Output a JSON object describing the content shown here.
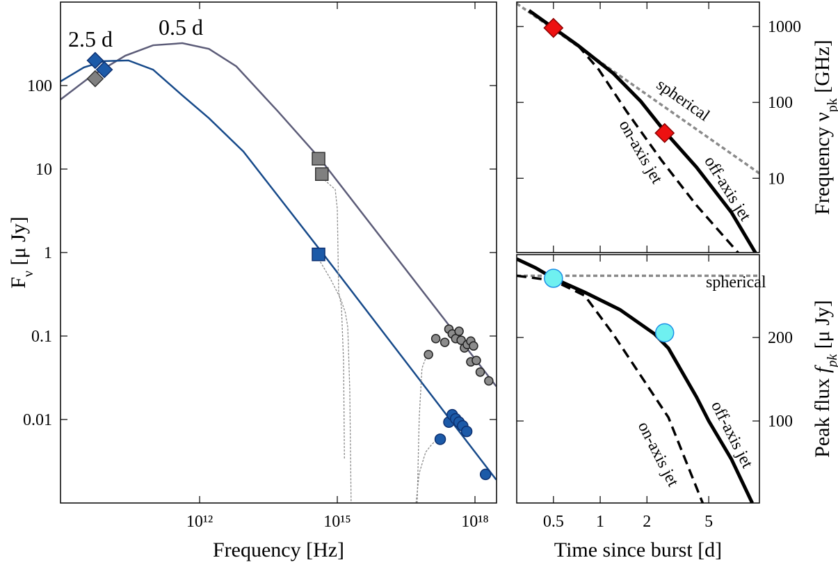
{
  "chart_data": [
    {
      "type": "line",
      "xlog": true,
      "ylog": true,
      "xlim": [
        930000000,
        2950000000000000000
      ],
      "ylim": [
        0.001,
        1000
      ],
      "xticks": [
        {
          "value": 1000000000000,
          "label": "10¹²"
        },
        {
          "value": 1000000000000000,
          "label": "10¹⁵"
        },
        {
          "value": 1000000000000000000,
          "label": "10¹⁸"
        }
      ],
      "yticks": [
        100,
        10,
        1,
        0.1,
        0.01
      ],
      "xlabel": [
        {
          "t": "Frequency [Hz]"
        }
      ],
      "ylabel": [
        {
          "t": "F"
        },
        {
          "t": "ν",
          "style": "sub"
        },
        {
          "t": "  [μ Jy]"
        }
      ],
      "annotations": [
        {
          "text": "2.5 d",
          "color": "#174a8a"
        },
        {
          "text": "0.5 d",
          "color": "#8a8a8a"
        }
      ],
      "series": [
        {
          "style": "solid",
          "color": "#5c5c78",
          "x": [
            930000000,
            4200000000,
            24000000000,
            97000000000,
            420000000000,
            1600000000000,
            6300000000000,
            51000000000000,
            420000000000000,
            2900000000000000000
          ],
          "values": [
            68,
            128,
            228,
            304,
            322,
            275,
            170,
            49,
            13.3,
            0.025
          ]
        },
        {
          "style": "solid",
          "color": "#174a8a",
          "x": [
            930000000,
            3000000000,
            8300000000,
            28000000000,
            97000000000,
            390000000000,
            1600000000000,
            9000000000000,
            500000000000000,
            2900000000000000000
          ],
          "values": [
            112,
            165,
            196,
            200,
            155,
            79,
            40.6,
            16.2,
            0.95,
            0.0019
          ]
        },
        {
          "style": "thin-dashed",
          "color": "#8a8a8a",
          "x": [
            460000000000000,
            900000000000000,
            1000000000000000,
            1070000000000000,
            1230000000000000,
            1370000000000000,
            1430000000000000
          ],
          "values": [
            7.9,
            5.7,
            3.35,
            0.335,
            0.228,
            0.049,
            0.0034
          ]
        },
        {
          "style": "thin-dashed",
          "color": "#8a8a8a",
          "x": [
            390000000000000,
            700000000000000,
            1190000000000000,
            1500000000000000,
            1690000000000000,
            1870000000000000,
            2000000000000000
          ],
          "values": [
            0.84,
            0.49,
            0.277,
            0.19,
            0.128,
            0.0228,
            0.001
          ]
        },
        {
          "style": "thin-dashed",
          "color": "#8a8a8a",
          "x": [
            55000000000000000,
            61000000000000000,
            70000000000000000,
            84000000000000000
          ],
          "values": [
            0.001,
            0.0106,
            0.041,
            0.054
          ]
        },
        {
          "style": "thin-dashed",
          "color": "#8a8a8a",
          "x": [
            52000000000000000,
            61000000000000000,
            84000000000000000,
            110000000000000000,
            157000000000000000
          ],
          "values": [
            0.001,
            0.00228,
            0.00406,
            0.0049,
            0.006
          ]
        },
        {
          "marker": "circle",
          "color": "#8c8c8c",
          "edge": "#222",
          "x": [
            97000000000000000,
            140000000000000000,
            220000000000000000,
            270000000000000000,
            320000000000000000,
            380000000000000000,
            450000000000000000,
            500000000000000000,
            590000000000000000,
            680000000000000000,
            810000000000000000,
            930000000000000000,
            810000000000000000,
            1070000000000000000,
            1300000000000000000,
            2000000000000000000
          ],
          "values": [
            0.06,
            0.093,
            0.084,
            0.121,
            0.106,
            0.093,
            0.114,
            0.089,
            0.072,
            0.079,
            0.087,
            0.076,
            0.049,
            0.051,
            0.037,
            0.029
          ]
        },
        {
          "marker": "circle-blue",
          "color": "#1c5aa8",
          "edge": "#0d3070",
          "x": [
            175000000000000000,
            270000000000000000,
            320000000000000000,
            380000000000000000,
            450000000000000000,
            540000000000000000,
            660000000000000000,
            1700000000000000000
          ],
          "values": [
            0.0058,
            0.0093,
            0.0114,
            0.0102,
            0.0093,
            0.0084,
            0.0072,
            0.0022
          ]
        },
        {
          "marker": "square",
          "color": "#808080",
          "edge": "#333",
          "x": [
            390000000000000,
            460000000000000
          ],
          "values": [
            13.3,
            8.7
          ]
        },
        {
          "marker": "square",
          "color": "#1c5aa8",
          "edge": "#0d3070",
          "x": [
            390000000000000
          ],
          "values": [
            0.95
          ]
        },
        {
          "marker": "diamond",
          "color": "#808080",
          "edge": "#333",
          "x": [
            5300000000
          ],
          "values": [
            121
          ]
        },
        {
          "marker": "diamond",
          "color": "#1c5aa8",
          "edge": "#0d3070",
          "x": [
            5300000000,
            8400000000
          ],
          "values": [
            200,
            155
          ]
        }
      ]
    },
    {
      "type": "line",
      "xlog": true,
      "ylog": true,
      "xlim": [
        0.29,
        10.6
      ],
      "ylim": [
        1.05,
        2100
      ],
      "yticks": [
        1000,
        100,
        10
      ],
      "ylabel": [
        {
          "t": "Frequency ν"
        },
        {
          "t": "pk",
          "style": "sub"
        },
        {
          "t": " [GHz]"
        }
      ],
      "annotations": [
        {
          "text": "spherical",
          "color": "#999"
        },
        {
          "text": "on-axis jet",
          "color": "#000"
        },
        {
          "text": "off-axis jet",
          "color": "#000"
        }
      ],
      "series": [
        {
          "style": "dotted",
          "color": "#8a8a8a",
          "x": [
            0.29,
            10.6
          ],
          "values": [
            2010,
            11.6
          ]
        },
        {
          "style": "dashed",
          "color": "#000",
          "x": [
            0.718,
            0.98,
            1.48,
            2.48,
            4.17,
            7.75
          ],
          "values": [
            565,
            270,
            76,
            17.3,
            4.4,
            1.04
          ]
        },
        {
          "style": "thick",
          "color": "#000",
          "x": [
            0.348,
            0.5,
            0.718,
            1.21,
            1.82,
            2.64,
            4.17,
            7.0,
            10.0
          ],
          "values": [
            1625,
            959,
            565,
            243,
            104,
            40,
            14,
            3.55,
            1.04
          ]
        },
        {
          "marker": "big-diamond",
          "color": "#ee1111",
          "edge": "#8b0000",
          "x": [
            0.5,
            2.6
          ],
          "values": [
            959,
            39.5
          ]
        }
      ]
    },
    {
      "type": "line",
      "xlog": true,
      "ylog": true,
      "xlim": [
        0.29,
        10.6
      ],
      "ylim": [
        50.6,
        398
      ],
      "xticks": [
        0.5,
        1,
        2,
        5
      ],
      "yticks": [
        200,
        100
      ],
      "xlabel": [
        {
          "t": "Time since burst [d]"
        }
      ],
      "ylabel": [
        {
          "t": "Peak flux  "
        },
        {
          "t": "f",
          "style": "italic"
        },
        {
          "t": "pk",
          "style": "italic-sub"
        },
        {
          "t": " [μ Jy]"
        }
      ],
      "annotations": [
        {
          "text": "spherical",
          "color": "#999"
        },
        {
          "text": "off-axis jet",
          "color": "#000"
        },
        {
          "text": "on-axis jet",
          "color": "#000"
        }
      ],
      "series": [
        {
          "style": "dotted",
          "color": "#8a8a8a",
          "x": [
            0.29,
            10.6
          ],
          "values": [
            334,
            334
          ]
        },
        {
          "style": "dashed",
          "color": "#000",
          "x": [
            0.29,
            0.5,
            0.796,
            1.21,
            1.82,
            2.75,
            4.57
          ],
          "values": [
            334,
            321,
            283,
            206,
            146,
            103,
            50.6
          ]
        },
        {
          "style": "thick",
          "color": "#000",
          "x": [
            0.29,
            0.386,
            0.5,
            0.796,
            1.34,
            2.24,
            2.75,
            4.17,
            5,
            7.0,
            9.53
          ],
          "values": [
            384,
            356,
            327,
            291,
            252,
            206,
            183,
            122,
            100,
            72.8,
            50.6
          ]
        },
        {
          "marker": "big-circle",
          "color": "#6ff0f0",
          "edge": "#1b8fe6",
          "x": [
            0.5,
            2.6
          ],
          "values": [
            327,
            208
          ]
        }
      ]
    }
  ]
}
